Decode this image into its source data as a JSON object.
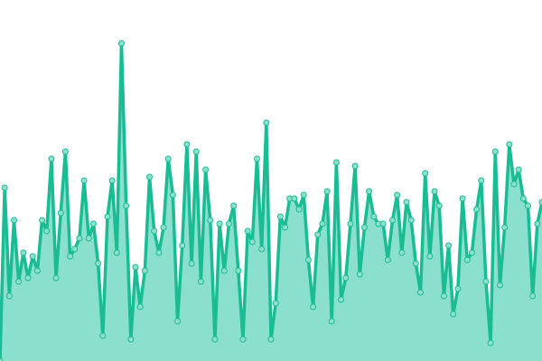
{
  "chart_data": {
    "type": "area",
    "title": "",
    "xlabel": "",
    "ylabel": "",
    "grid": false,
    "legend": "none",
    "xlim": [
      0,
      116
    ],
    "ylim": [
      0,
      100
    ],
    "colors": {
      "line": "#1abc94",
      "fill": "#8ae0cd",
      "marker_fill": "#8ee0ce",
      "marker_stroke": "#1abc94"
    },
    "values": [
      0,
      48,
      18,
      39,
      22,
      30,
      23,
      29,
      25,
      39,
      36,
      56,
      23,
      41,
      58,
      29,
      31,
      34,
      50,
      34,
      38,
      27,
      7,
      40,
      50,
      30,
      88,
      43,
      6,
      26,
      15,
      25,
      51,
      36,
      30,
      37,
      56,
      46,
      11,
      32,
      60,
      27,
      58,
      22,
      53,
      39,
      6,
      38,
      25,
      38,
      43,
      25,
      6,
      36,
      33,
      56,
      31,
      66,
      6,
      16,
      40,
      37,
      45,
      45,
      42,
      46,
      28,
      15,
      35,
      38,
      47,
      11,
      55,
      17,
      23,
      38,
      54,
      24,
      37,
      47,
      40,
      38,
      38,
      28,
      39,
      46,
      30,
      44,
      39,
      27,
      19,
      52,
      29,
      47,
      43,
      18,
      32,
      13,
      20,
      45,
      28,
      30,
      42,
      50,
      22,
      5,
      58,
      21,
      37,
      60,
      49,
      53,
      45,
      43,
      18,
      38,
      44
    ]
  }
}
